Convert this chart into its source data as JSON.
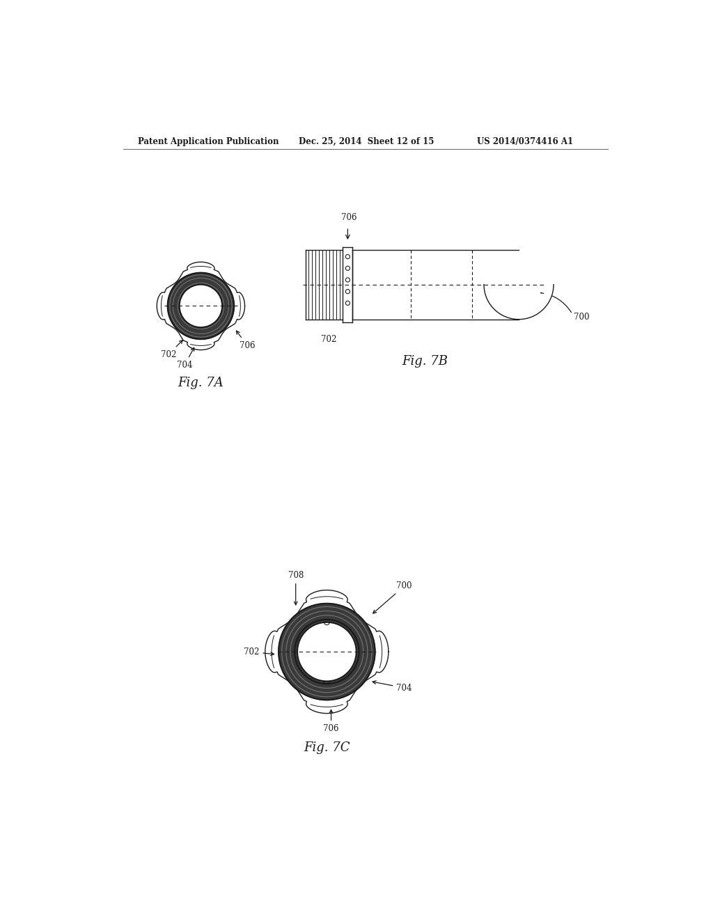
{
  "background_color": "#ffffff",
  "header_left": "Patent Application Publication",
  "header_mid": "Dec. 25, 2014  Sheet 12 of 15",
  "header_right": "US 2014/0374416 A1",
  "fig7A_label": "Fig. 7A",
  "fig7B_label": "Fig. 7B",
  "fig7C_label": "Fig. 7C",
  "color_main": "#1a1a1a",
  "color_dark_fill": "#444444",
  "color_mid_fill": "#888888",
  "color_light_fill": "#cccccc",
  "color_white": "#ffffff"
}
